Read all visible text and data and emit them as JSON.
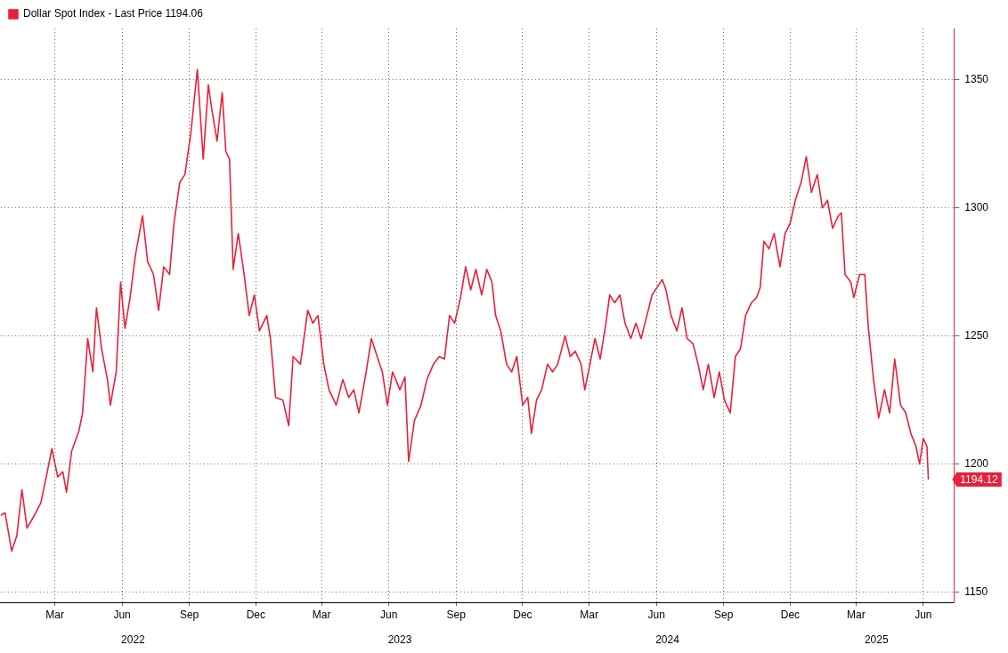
{
  "chart_data": {
    "type": "line",
    "legend": "top left",
    "grid": true,
    "line_style": "solid",
    "marker": "none",
    "xlim": [
      "2022-01-01",
      "2025-07-28"
    ],
    "ylim": [
      1146,
      1370
    ],
    "x2lim": [
      "2022-01-01",
      "2025-07-28"
    ],
    "yticks": [
      1150,
      1200,
      1250,
      1300,
      1350
    ],
    "xticks": [
      {
        "value": "2022-03-16",
        "label": "Mar"
      },
      {
        "value": "2022-06-16",
        "label": "Jun"
      },
      {
        "value": "2022-09-16",
        "label": "Sep"
      },
      {
        "value": "2022-12-16",
        "label": "Dec"
      },
      {
        "value": "2023-03-16",
        "label": "Mar"
      },
      {
        "value": "2023-06-16",
        "label": "Jun"
      },
      {
        "value": "2023-09-16",
        "label": "Sep"
      },
      {
        "value": "2023-12-16",
        "label": "Dec"
      },
      {
        "value": "2024-03-16",
        "label": "Mar"
      },
      {
        "value": "2024-06-16",
        "label": "Jun"
      },
      {
        "value": "2024-09-16",
        "label": "Sep"
      },
      {
        "value": "2024-12-16",
        "label": "Dec"
      },
      {
        "value": "2025-03-16",
        "label": "Mar"
      },
      {
        "value": "2025-06-16",
        "label": "Jun"
      }
    ],
    "x2ticks": [
      {
        "value": "2022-07-01",
        "label": "2022"
      },
      {
        "value": "2023-07-01",
        "label": "2023"
      },
      {
        "value": "2024-07-01",
        "label": "2024"
      },
      {
        "value": "2025-04-13",
        "label": "2025"
      }
    ],
    "annotations": [
      "1194.12"
    ],
    "series": [
      {
        "name": "Dollar Spot Index - Last Price 1194.06",
        "color": "#e8213a",
        "x": [
          "2022-01-01",
          "2022-01-07",
          "2022-01-16",
          "2022-01-23",
          "2022-01-30",
          "2022-02-06",
          "2022-02-16",
          "2022-02-25",
          "2022-03-05",
          "2022-03-12",
          "2022-03-20",
          "2022-03-27",
          "2022-04-01",
          "2022-04-08",
          "2022-04-18",
          "2022-04-23",
          "2022-04-30",
          "2022-05-07",
          "2022-05-12",
          "2022-05-19",
          "2022-05-27",
          "2022-05-31",
          "2022-06-08",
          "2022-06-14",
          "2022-06-20",
          "2022-06-27",
          "2022-07-04",
          "2022-07-14",
          "2022-07-21",
          "2022-07-29",
          "2022-08-05",
          "2022-08-12",
          "2022-08-20",
          "2022-08-26",
          "2022-09-03",
          "2022-09-10",
          "2022-09-18",
          "2022-09-27",
          "2022-10-05",
          "2022-10-12",
          "2022-10-17",
          "2022-10-24",
          "2022-10-31",
          "2022-11-05",
          "2022-11-10",
          "2022-11-15",
          "2022-11-22",
          "2022-11-30",
          "2022-12-07",
          "2022-12-14",
          "2022-12-21",
          "2022-12-31",
          "2023-01-05",
          "2023-01-12",
          "2023-01-22",
          "2023-01-30",
          "2023-02-05",
          "2023-02-15",
          "2023-02-25",
          "2023-03-04",
          "2023-03-11",
          "2023-03-19",
          "2023-03-26",
          "2023-04-05",
          "2023-04-14",
          "2023-04-22",
          "2023-04-29",
          "2023-05-06",
          "2023-05-16",
          "2023-05-23",
          "2023-05-31",
          "2023-06-07",
          "2023-06-14",
          "2023-06-21",
          "2023-07-01",
          "2023-07-08",
          "2023-07-13",
          "2023-07-21",
          "2023-07-30",
          "2023-08-07",
          "2023-08-16",
          "2023-08-24",
          "2023-08-31",
          "2023-09-07",
          "2023-09-14",
          "2023-09-22",
          "2023-09-29",
          "2023-10-06",
          "2023-10-13",
          "2023-10-21",
          "2023-10-28",
          "2023-11-04",
          "2023-11-09",
          "2023-11-16",
          "2023-11-24",
          "2023-12-01",
          "2023-12-08",
          "2023-12-16",
          "2023-12-23",
          "2023-12-28",
          "2024-01-04",
          "2024-01-11",
          "2024-01-19",
          "2024-01-26",
          "2024-02-02",
          "2024-02-12",
          "2024-02-19",
          "2024-02-26",
          "2024-03-05",
          "2024-03-10",
          "2024-03-17",
          "2024-03-24",
          "2024-03-31",
          "2024-04-08",
          "2024-04-13",
          "2024-04-20",
          "2024-04-27",
          "2024-05-04",
          "2024-05-12",
          "2024-05-19",
          "2024-05-26",
          "2024-06-03",
          "2024-06-10",
          "2024-06-17",
          "2024-06-24",
          "2024-06-29",
          "2024-07-06",
          "2024-07-14",
          "2024-07-21",
          "2024-07-28",
          "2024-08-05",
          "2024-08-12",
          "2024-08-19",
          "2024-08-26",
          "2024-09-03",
          "2024-09-10",
          "2024-09-17",
          "2024-09-25",
          "2024-10-02",
          "2024-10-09",
          "2024-10-16",
          "2024-10-24",
          "2024-10-31",
          "2024-11-05",
          "2024-11-10",
          "2024-11-17",
          "2024-11-24",
          "2024-12-02",
          "2024-12-09",
          "2024-12-16",
          "2024-12-23",
          "2024-12-31",
          "2025-01-07",
          "2025-01-14",
          "2025-01-22",
          "2025-01-29",
          "2025-02-05",
          "2025-02-12",
          "2025-02-20",
          "2025-02-24",
          "2025-03-01",
          "2025-03-09",
          "2025-03-13",
          "2025-03-21",
          "2025-03-28",
          "2025-04-02",
          "2025-04-09",
          "2025-04-16",
          "2025-04-24",
          "2025-05-01",
          "2025-05-08",
          "2025-05-16",
          "2025-05-23",
          "2025-05-30",
          "2025-06-06",
          "2025-06-11",
          "2025-06-16",
          "2025-06-21",
          "2025-06-23"
        ],
        "values": [
          1180,
          1181,
          1166,
          1172,
          1190,
          1175,
          1180,
          1185,
          1196,
          1206,
          1195,
          1197,
          1189,
          1205,
          1213,
          1220,
          1249,
          1236,
          1261,
          1245,
          1233,
          1223,
          1236,
          1271,
          1253,
          1265,
          1281,
          1297,
          1279,
          1274,
          1260,
          1277,
          1274,
          1294,
          1310,
          1313,
          1329,
          1354,
          1319,
          1348,
          1338,
          1326,
          1345,
          1322,
          1319,
          1276,
          1290,
          1274,
          1258,
          1266,
          1252,
          1258,
          1249,
          1226,
          1225,
          1215,
          1242,
          1239,
          1260,
          1255,
          1258,
          1239,
          1229,
          1223,
          1233,
          1226,
          1229,
          1220,
          1236,
          1249,
          1242,
          1236,
          1223,
          1236,
          1229,
          1234,
          1201,
          1217,
          1223,
          1233,
          1239,
          1242,
          1241,
          1258,
          1255,
          1265,
          1277,
          1268,
          1276,
          1266,
          1276,
          1271,
          1258,
          1252,
          1239,
          1236,
          1242,
          1223,
          1226,
          1212,
          1225,
          1229,
          1239,
          1236,
          1239,
          1250,
          1242,
          1244,
          1239,
          1229,
          1239,
          1249,
          1241,
          1255,
          1266,
          1263,
          1266,
          1255,
          1249,
          1255,
          1249,
          1258,
          1266,
          1269,
          1272,
          1268,
          1258,
          1252,
          1261,
          1249,
          1247,
          1239,
          1229,
          1239,
          1226,
          1236,
          1225,
          1220,
          1242,
          1245,
          1258,
          1263,
          1265,
          1269,
          1287,
          1284,
          1290,
          1277,
          1290,
          1294,
          1303,
          1310,
          1320,
          1306,
          1313,
          1300,
          1303,
          1292,
          1297,
          1298,
          1274,
          1271,
          1265,
          1274,
          1274,
          1253,
          1233,
          1218,
          1229,
          1220,
          1241,
          1223,
          1220,
          1212,
          1207,
          1200,
          1210,
          1207,
          1194
        ]
      }
    ]
  }
}
